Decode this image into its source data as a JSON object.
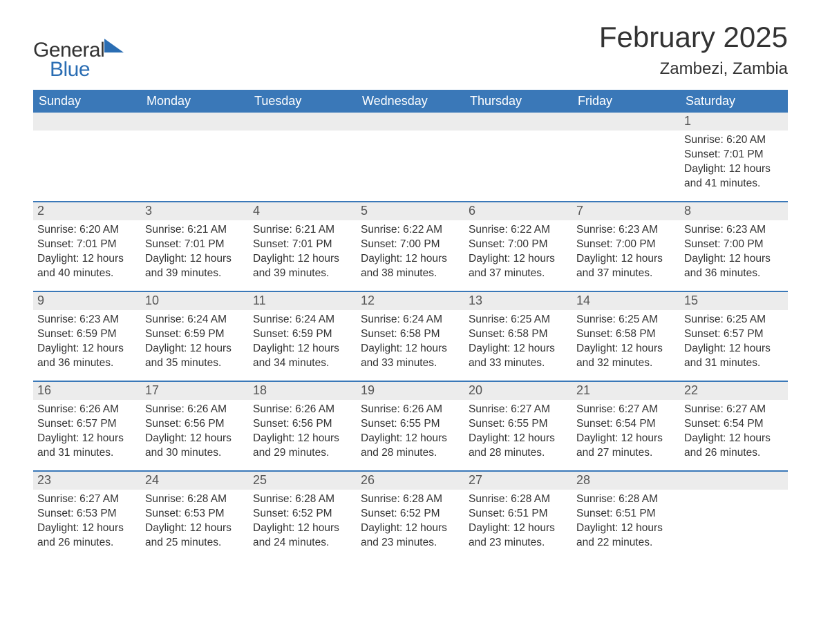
{
  "logo": {
    "text_general": "General",
    "text_blue": "Blue",
    "triangle_color": "#2a6db3"
  },
  "header": {
    "month_title": "February 2025",
    "location": "Zambezi, Zambia"
  },
  "colors": {
    "header_bg": "#3a78b8",
    "header_text": "#ffffff",
    "daynum_bg": "#ececec",
    "body_text": "#333333",
    "row_border": "#3a78b8",
    "page_bg": "#ffffff"
  },
  "typography": {
    "month_title_fontsize": 42,
    "location_fontsize": 24,
    "weekday_fontsize": 18,
    "daynum_fontsize": 18,
    "body_fontsize": 15.5,
    "font_family": "Arial"
  },
  "calendar": {
    "type": "table",
    "weekdays": [
      "Sunday",
      "Monday",
      "Tuesday",
      "Wednesday",
      "Thursday",
      "Friday",
      "Saturday"
    ],
    "first_day_column_index": 6,
    "weeks": [
      [
        null,
        null,
        null,
        null,
        null,
        null,
        {
          "n": "1",
          "sunrise": "Sunrise: 6:20 AM",
          "sunset": "Sunset: 7:01 PM",
          "day1": "Daylight: 12 hours",
          "day2": "and 41 minutes."
        }
      ],
      [
        {
          "n": "2",
          "sunrise": "Sunrise: 6:20 AM",
          "sunset": "Sunset: 7:01 PM",
          "day1": "Daylight: 12 hours",
          "day2": "and 40 minutes."
        },
        {
          "n": "3",
          "sunrise": "Sunrise: 6:21 AM",
          "sunset": "Sunset: 7:01 PM",
          "day1": "Daylight: 12 hours",
          "day2": "and 39 minutes."
        },
        {
          "n": "4",
          "sunrise": "Sunrise: 6:21 AM",
          "sunset": "Sunset: 7:01 PM",
          "day1": "Daylight: 12 hours",
          "day2": "and 39 minutes."
        },
        {
          "n": "5",
          "sunrise": "Sunrise: 6:22 AM",
          "sunset": "Sunset: 7:00 PM",
          "day1": "Daylight: 12 hours",
          "day2": "and 38 minutes."
        },
        {
          "n": "6",
          "sunrise": "Sunrise: 6:22 AM",
          "sunset": "Sunset: 7:00 PM",
          "day1": "Daylight: 12 hours",
          "day2": "and 37 minutes."
        },
        {
          "n": "7",
          "sunrise": "Sunrise: 6:23 AM",
          "sunset": "Sunset: 7:00 PM",
          "day1": "Daylight: 12 hours",
          "day2": "and 37 minutes."
        },
        {
          "n": "8",
          "sunrise": "Sunrise: 6:23 AM",
          "sunset": "Sunset: 7:00 PM",
          "day1": "Daylight: 12 hours",
          "day2": "and 36 minutes."
        }
      ],
      [
        {
          "n": "9",
          "sunrise": "Sunrise: 6:23 AM",
          "sunset": "Sunset: 6:59 PM",
          "day1": "Daylight: 12 hours",
          "day2": "and 36 minutes."
        },
        {
          "n": "10",
          "sunrise": "Sunrise: 6:24 AM",
          "sunset": "Sunset: 6:59 PM",
          "day1": "Daylight: 12 hours",
          "day2": "and 35 minutes."
        },
        {
          "n": "11",
          "sunrise": "Sunrise: 6:24 AM",
          "sunset": "Sunset: 6:59 PM",
          "day1": "Daylight: 12 hours",
          "day2": "and 34 minutes."
        },
        {
          "n": "12",
          "sunrise": "Sunrise: 6:24 AM",
          "sunset": "Sunset: 6:58 PM",
          "day1": "Daylight: 12 hours",
          "day2": "and 33 minutes."
        },
        {
          "n": "13",
          "sunrise": "Sunrise: 6:25 AM",
          "sunset": "Sunset: 6:58 PM",
          "day1": "Daylight: 12 hours",
          "day2": "and 33 minutes."
        },
        {
          "n": "14",
          "sunrise": "Sunrise: 6:25 AM",
          "sunset": "Sunset: 6:58 PM",
          "day1": "Daylight: 12 hours",
          "day2": "and 32 minutes."
        },
        {
          "n": "15",
          "sunrise": "Sunrise: 6:25 AM",
          "sunset": "Sunset: 6:57 PM",
          "day1": "Daylight: 12 hours",
          "day2": "and 31 minutes."
        }
      ],
      [
        {
          "n": "16",
          "sunrise": "Sunrise: 6:26 AM",
          "sunset": "Sunset: 6:57 PM",
          "day1": "Daylight: 12 hours",
          "day2": "and 31 minutes."
        },
        {
          "n": "17",
          "sunrise": "Sunrise: 6:26 AM",
          "sunset": "Sunset: 6:56 PM",
          "day1": "Daylight: 12 hours",
          "day2": "and 30 minutes."
        },
        {
          "n": "18",
          "sunrise": "Sunrise: 6:26 AM",
          "sunset": "Sunset: 6:56 PM",
          "day1": "Daylight: 12 hours",
          "day2": "and 29 minutes."
        },
        {
          "n": "19",
          "sunrise": "Sunrise: 6:26 AM",
          "sunset": "Sunset: 6:55 PM",
          "day1": "Daylight: 12 hours",
          "day2": "and 28 minutes."
        },
        {
          "n": "20",
          "sunrise": "Sunrise: 6:27 AM",
          "sunset": "Sunset: 6:55 PM",
          "day1": "Daylight: 12 hours",
          "day2": "and 28 minutes."
        },
        {
          "n": "21",
          "sunrise": "Sunrise: 6:27 AM",
          "sunset": "Sunset: 6:54 PM",
          "day1": "Daylight: 12 hours",
          "day2": "and 27 minutes."
        },
        {
          "n": "22",
          "sunrise": "Sunrise: 6:27 AM",
          "sunset": "Sunset: 6:54 PM",
          "day1": "Daylight: 12 hours",
          "day2": "and 26 minutes."
        }
      ],
      [
        {
          "n": "23",
          "sunrise": "Sunrise: 6:27 AM",
          "sunset": "Sunset: 6:53 PM",
          "day1": "Daylight: 12 hours",
          "day2": "and 26 minutes."
        },
        {
          "n": "24",
          "sunrise": "Sunrise: 6:28 AM",
          "sunset": "Sunset: 6:53 PM",
          "day1": "Daylight: 12 hours",
          "day2": "and 25 minutes."
        },
        {
          "n": "25",
          "sunrise": "Sunrise: 6:28 AM",
          "sunset": "Sunset: 6:52 PM",
          "day1": "Daylight: 12 hours",
          "day2": "and 24 minutes."
        },
        {
          "n": "26",
          "sunrise": "Sunrise: 6:28 AM",
          "sunset": "Sunset: 6:52 PM",
          "day1": "Daylight: 12 hours",
          "day2": "and 23 minutes."
        },
        {
          "n": "27",
          "sunrise": "Sunrise: 6:28 AM",
          "sunset": "Sunset: 6:51 PM",
          "day1": "Daylight: 12 hours",
          "day2": "and 23 minutes."
        },
        {
          "n": "28",
          "sunrise": "Sunrise: 6:28 AM",
          "sunset": "Sunset: 6:51 PM",
          "day1": "Daylight: 12 hours",
          "day2": "and 22 minutes."
        },
        null
      ]
    ]
  }
}
